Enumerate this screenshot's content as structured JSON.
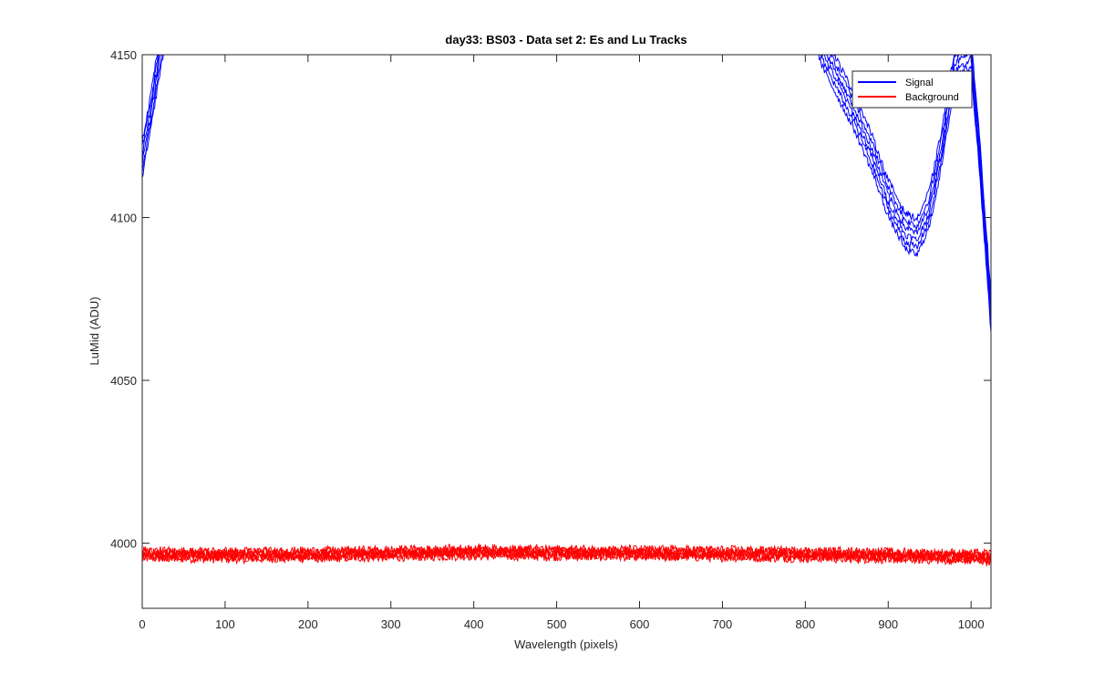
{
  "chart_data": {
    "type": "line",
    "title": "day33: BS03 - Data set 2: Es and Lu Tracks",
    "xlabel": "Wavelength (pixels)",
    "ylabel": "LuMid (ADU)",
    "xlim": [
      0,
      1024
    ],
    "ylim": [
      3980,
      4150
    ],
    "xticks": [
      0,
      100,
      200,
      300,
      400,
      500,
      600,
      700,
      800,
      900,
      1000
    ],
    "yticks": [
      4000,
      4050,
      4100,
      4150
    ],
    "grid": false,
    "legend_position": "top-right",
    "legend": [
      {
        "name": "Signal",
        "color": "#0000ff"
      },
      {
        "name": "Background",
        "color": "#ff0000"
      }
    ],
    "series": [
      {
        "name": "Signal",
        "color": "#0000ff",
        "tracks": 6,
        "x": [
          0,
          10,
          20,
          25,
          30,
          800,
          820,
          840,
          860,
          880,
          900,
          920,
          935,
          950,
          965,
          980,
          1000,
          1010,
          1020,
          1024
        ],
        "y": [
          4118,
          4132,
          4148,
          4155,
          4165,
          4170,
          4152,
          4142,
          4132,
          4120,
          4106,
          4096,
          4094,
          4103,
          4122,
          4146,
          4150,
          4120,
          4085,
          4070
        ]
      },
      {
        "name": "Background",
        "color": "#ff0000",
        "tracks": 6,
        "x": [
          0,
          100,
          200,
          300,
          400,
          500,
          600,
          700,
          800,
          900,
          1000,
          1024
        ],
        "y": [
          3996.5,
          3996.3,
          3996.5,
          3996.8,
          3997.2,
          3997.0,
          3996.9,
          3996.8,
          3996.5,
          3996.2,
          3995.8,
          3995.6
        ]
      }
    ]
  }
}
